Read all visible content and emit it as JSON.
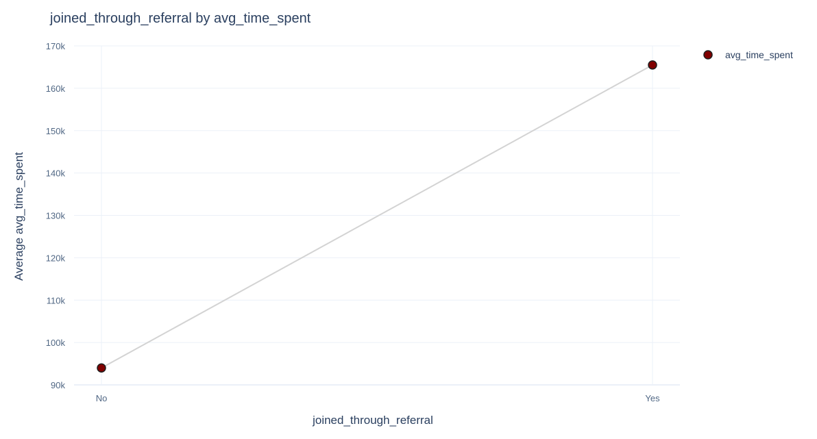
{
  "chart_data": {
    "type": "line",
    "title": "joined_through_referral by avg_time_spent",
    "xlabel": "joined_through_referral",
    "ylabel": "Average avg_time_spent",
    "categories": [
      "No",
      "Yes"
    ],
    "series": [
      {
        "name": "avg_time_spent",
        "values": [
          94000,
          165500
        ],
        "marker_color": "#800000",
        "marker_outline": "#1f1f1f",
        "line_color": "#d3d3d3"
      }
    ],
    "ylim": [
      90000,
      170000
    ],
    "yticks": [
      {
        "value": 90000,
        "label": "90k"
      },
      {
        "value": 100000,
        "label": "100k"
      },
      {
        "value": 110000,
        "label": "110k"
      },
      {
        "value": 120000,
        "label": "120k"
      },
      {
        "value": 130000,
        "label": "130k"
      },
      {
        "value": 140000,
        "label": "140k"
      },
      {
        "value": 150000,
        "label": "150k"
      },
      {
        "value": 160000,
        "label": "160k"
      },
      {
        "value": 170000,
        "label": "170k"
      }
    ],
    "grid": true,
    "legend_position": "top-right"
  }
}
